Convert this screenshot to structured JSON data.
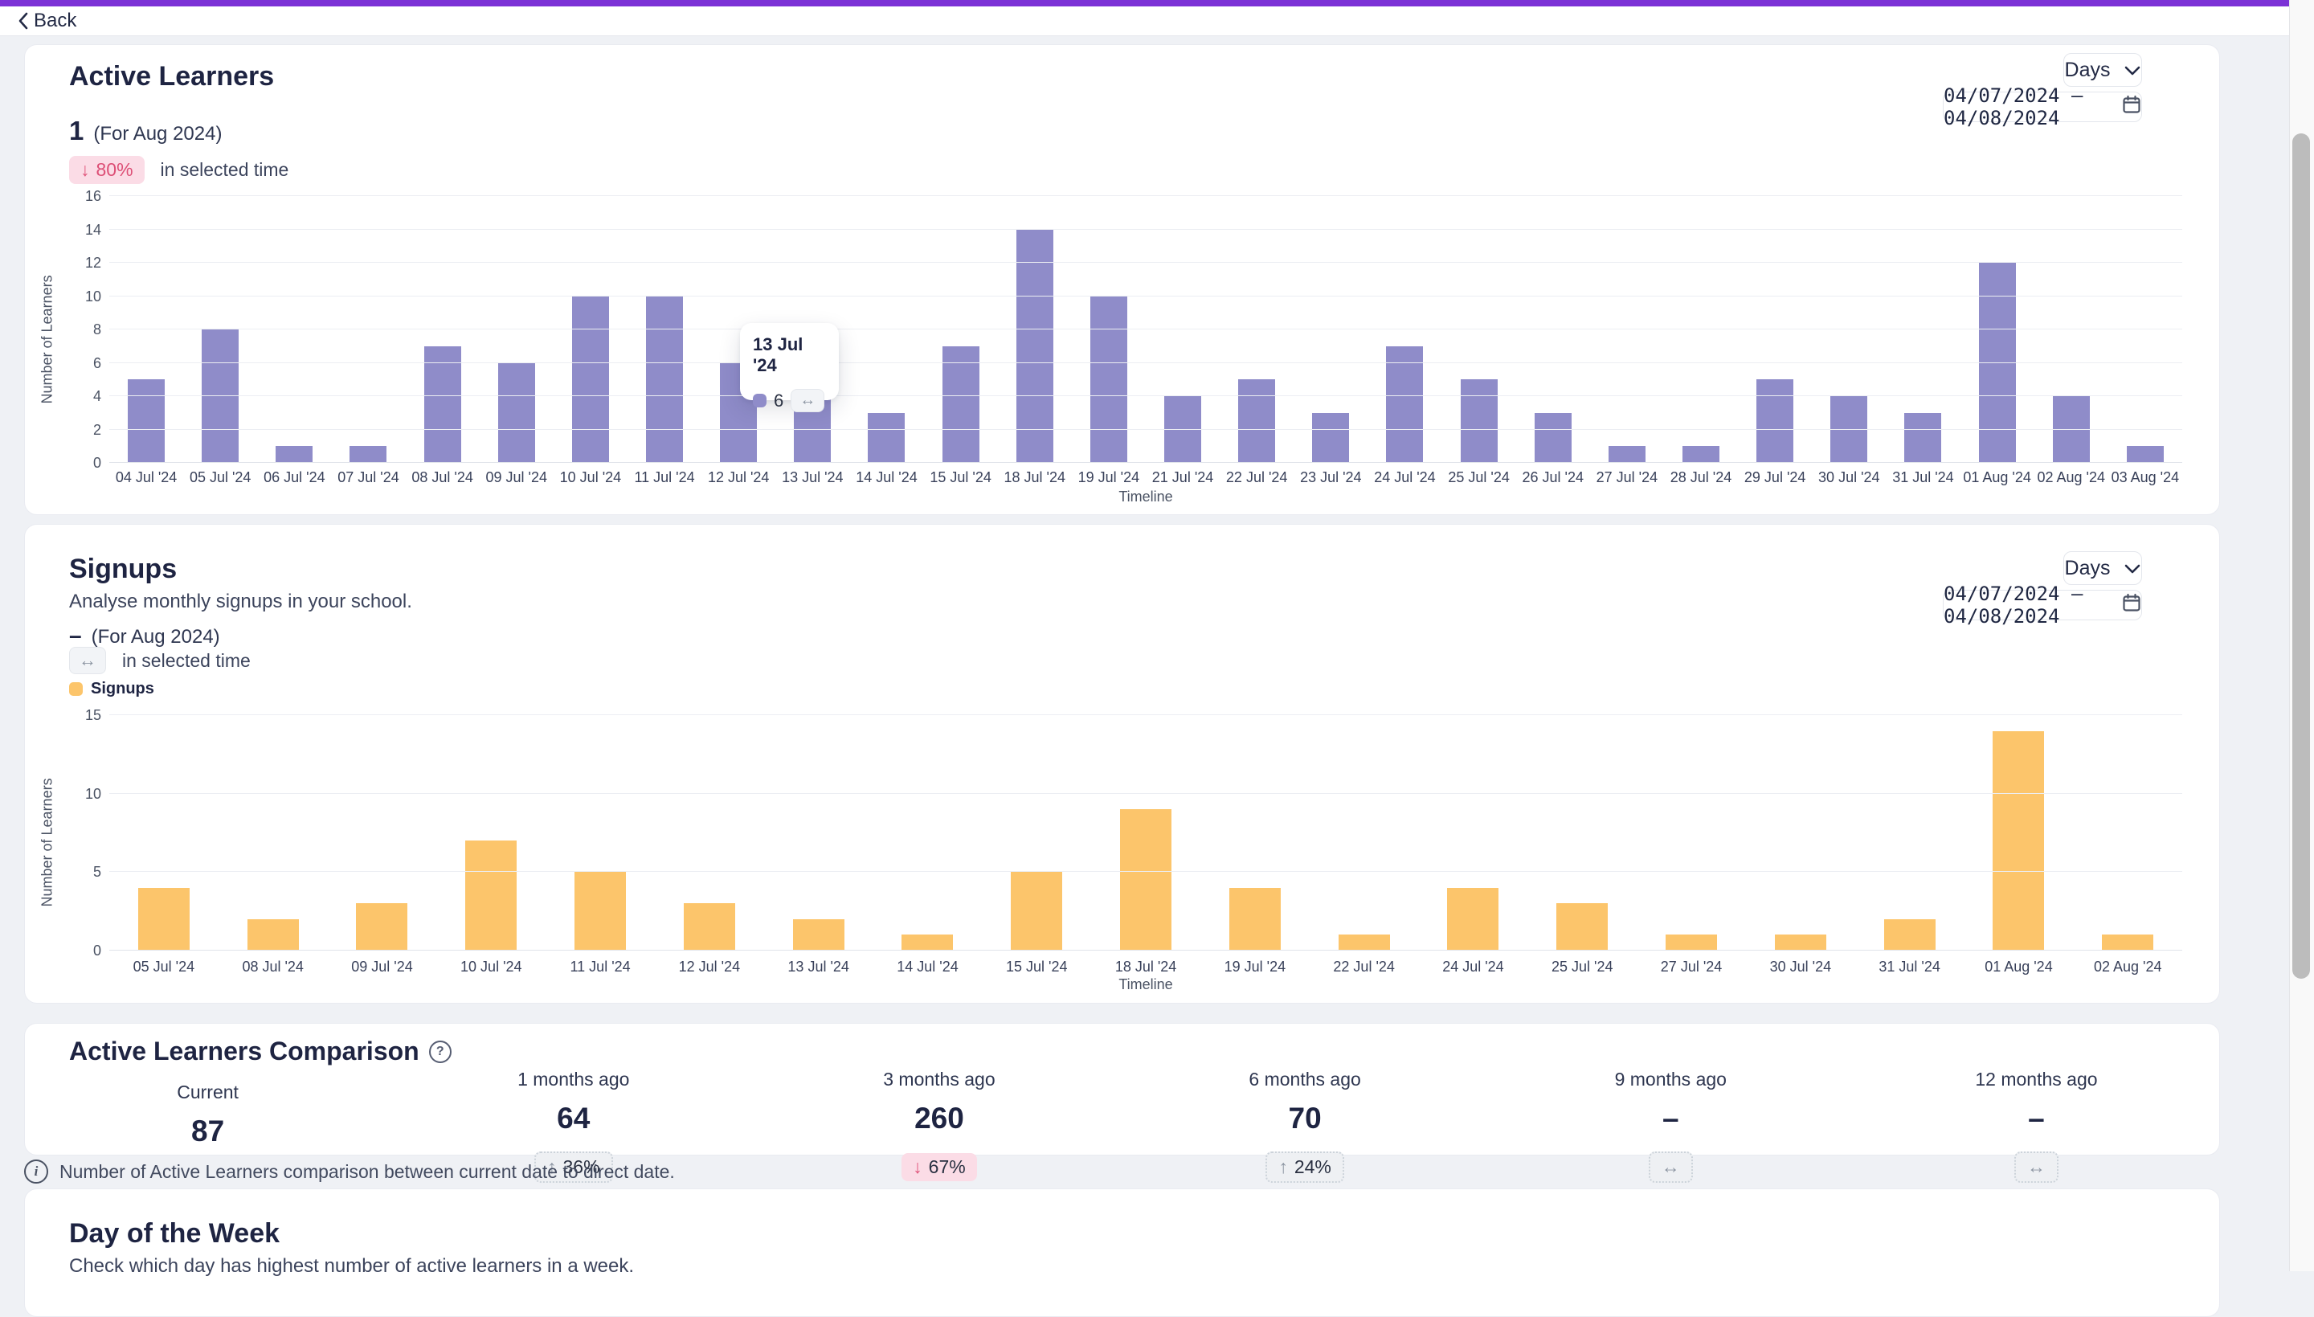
{
  "colors": {
    "accent_purple_bar": "#7c32d6",
    "purple_bar": "#8f8cc9",
    "orange_bar": "#fcc56b",
    "pink_badge_bg": "#fbdce6",
    "pink_badge_text": "#e0567c",
    "navy_text": "#1e2442",
    "page_bg": "#eff1f5"
  },
  "topbar": {
    "back_label": "Back"
  },
  "active_learners": {
    "title": "Active Learners",
    "value": "1",
    "value_caption": "(For Aug 2024)",
    "delta_badge": "80%",
    "delta_note": "in selected time",
    "period_selector": "Days",
    "date_range": "04/07/2024 – 04/08/2024",
    "tooltip": {
      "title": "13 Jul '24",
      "value": "6"
    }
  },
  "signups": {
    "title": "Signups",
    "subtitle": "Analyse monthly signups in your school.",
    "value": "–",
    "value_caption": "(For Aug 2024)",
    "delta_note": "in selected time",
    "legend_label": "Signups",
    "period_selector": "Days",
    "date_range": "04/07/2024 – 04/08/2024"
  },
  "comparison": {
    "title": "Active Learners Comparison",
    "items": [
      {
        "label": "Current",
        "value": "87",
        "badge": null
      },
      {
        "label": "1 months ago",
        "value": "64",
        "badge": {
          "direction": "up",
          "text": "36%"
        }
      },
      {
        "label": "3 months ago",
        "value": "260",
        "badge": {
          "direction": "down",
          "text": "67%"
        }
      },
      {
        "label": "6 months ago",
        "value": "70",
        "badge": {
          "direction": "up",
          "text": "24%"
        }
      },
      {
        "label": "9 months ago",
        "value": "–",
        "badge": {
          "direction": "neutral",
          "text": ""
        }
      },
      {
        "label": "12 months ago",
        "value": "–",
        "badge": {
          "direction": "neutral",
          "text": ""
        }
      }
    ],
    "note": "Number of Active Learners comparison between current date to direct date."
  },
  "day_of_week": {
    "title": "Day of the Week",
    "subtitle": "Check which day has highest number of active learners in a week."
  },
  "chart_data": [
    {
      "type": "bar",
      "title": "Active Learners",
      "categories": [
        "04 Jul '24",
        "05 Jul '24",
        "06 Jul '24",
        "07 Jul '24",
        "08 Jul '24",
        "09 Jul '24",
        "10 Jul '24",
        "11 Jul '24",
        "12 Jul '24",
        "13 Jul '24",
        "14 Jul '24",
        "15 Jul '24",
        "18 Jul '24",
        "19 Jul '24",
        "21 Jul '24",
        "22 Jul '24",
        "23 Jul '24",
        "24 Jul '24",
        "25 Jul '24",
        "26 Jul '24",
        "27 Jul '24",
        "28 Jul '24",
        "29 Jul '24",
        "30 Jul '24",
        "31 Jul '24",
        "01 Aug '24",
        "02 Aug '24",
        "03 Aug '24"
      ],
      "values": [
        5,
        8,
        1,
        1,
        7,
        6,
        10,
        10,
        6,
        6,
        3,
        7,
        14,
        10,
        4,
        5,
        3,
        7,
        5,
        3,
        1,
        1,
        5,
        4,
        3,
        12,
        4,
        1
      ],
      "xlabel": "Timeline",
      "ylabel": "Number of Learners",
      "ylim": [
        0,
        16
      ],
      "yticks": [
        0,
        2,
        4,
        6,
        8,
        10,
        12,
        14,
        16
      ],
      "grid": true,
      "legend_position": "none"
    },
    {
      "type": "bar",
      "title": "Signups",
      "categories": [
        "05 Jul '24",
        "08 Jul '24",
        "09 Jul '24",
        "10 Jul '24",
        "11 Jul '24",
        "12 Jul '24",
        "13 Jul '24",
        "14 Jul '24",
        "15 Jul '24",
        "18 Jul '24",
        "19 Jul '24",
        "22 Jul '24",
        "24 Jul '24",
        "25 Jul '24",
        "27 Jul '24",
        "30 Jul '24",
        "31 Jul '24",
        "01 Aug '24",
        "02 Aug '24"
      ],
      "values": [
        4,
        2,
        3,
        7,
        5,
        3,
        2,
        1,
        5,
        9,
        4,
        1,
        4,
        3,
        1,
        1,
        2,
        14,
        1
      ],
      "xlabel": "Timeline",
      "ylabel": "Number of Learners",
      "ylim": [
        0,
        15
      ],
      "yticks": [
        0,
        5,
        10,
        15
      ],
      "grid": true,
      "legend_position": "top-left"
    }
  ]
}
